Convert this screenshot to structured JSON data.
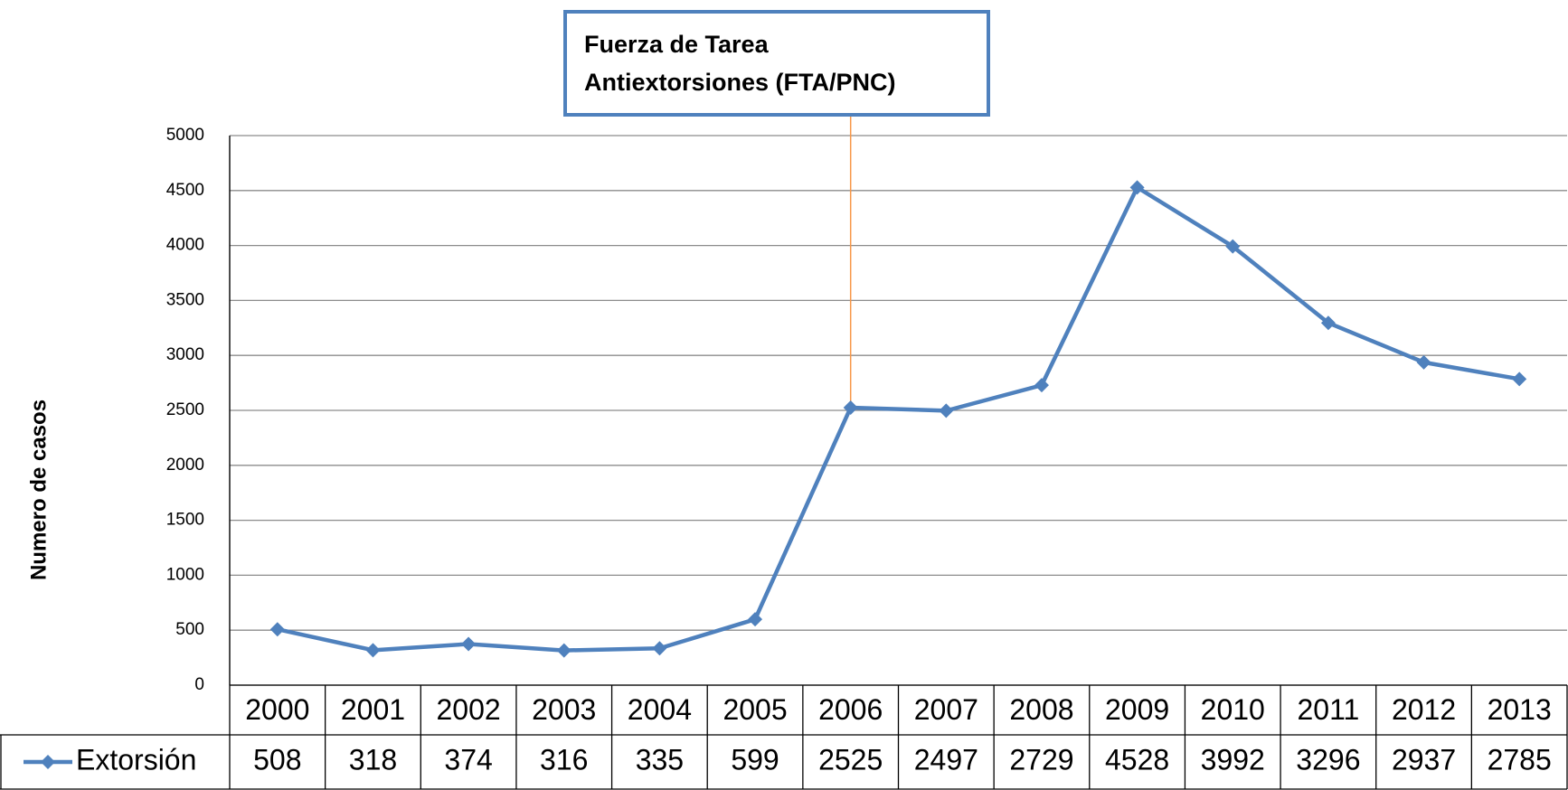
{
  "chart_data": {
    "type": "line",
    "y_label": "Numero de casos",
    "annotation": {
      "lines": [
        "Fuerza de Tarea",
        "Antiextorsiones (FTA/PNC)"
      ],
      "category": "2006"
    },
    "categories": [
      "2000",
      "2001",
      "2002",
      "2003",
      "2004",
      "2005",
      "2006",
      "2007",
      "2008",
      "2009",
      "2010",
      "2011",
      "2012",
      "2013"
    ],
    "series": [
      {
        "name": "Extorsión",
        "color": "#4f81bd",
        "values": [
          508,
          318,
          374,
          316,
          335,
          599,
          2525,
          2497,
          2729,
          4528,
          3992,
          3296,
          2937,
          2785
        ]
      }
    ],
    "ylim": [
      0,
      5000
    ],
    "yticks": [
      0,
      500,
      1000,
      1500,
      2000,
      2500,
      3000,
      3500,
      4000,
      4500,
      5000
    ],
    "grid": true,
    "data_table": true
  }
}
